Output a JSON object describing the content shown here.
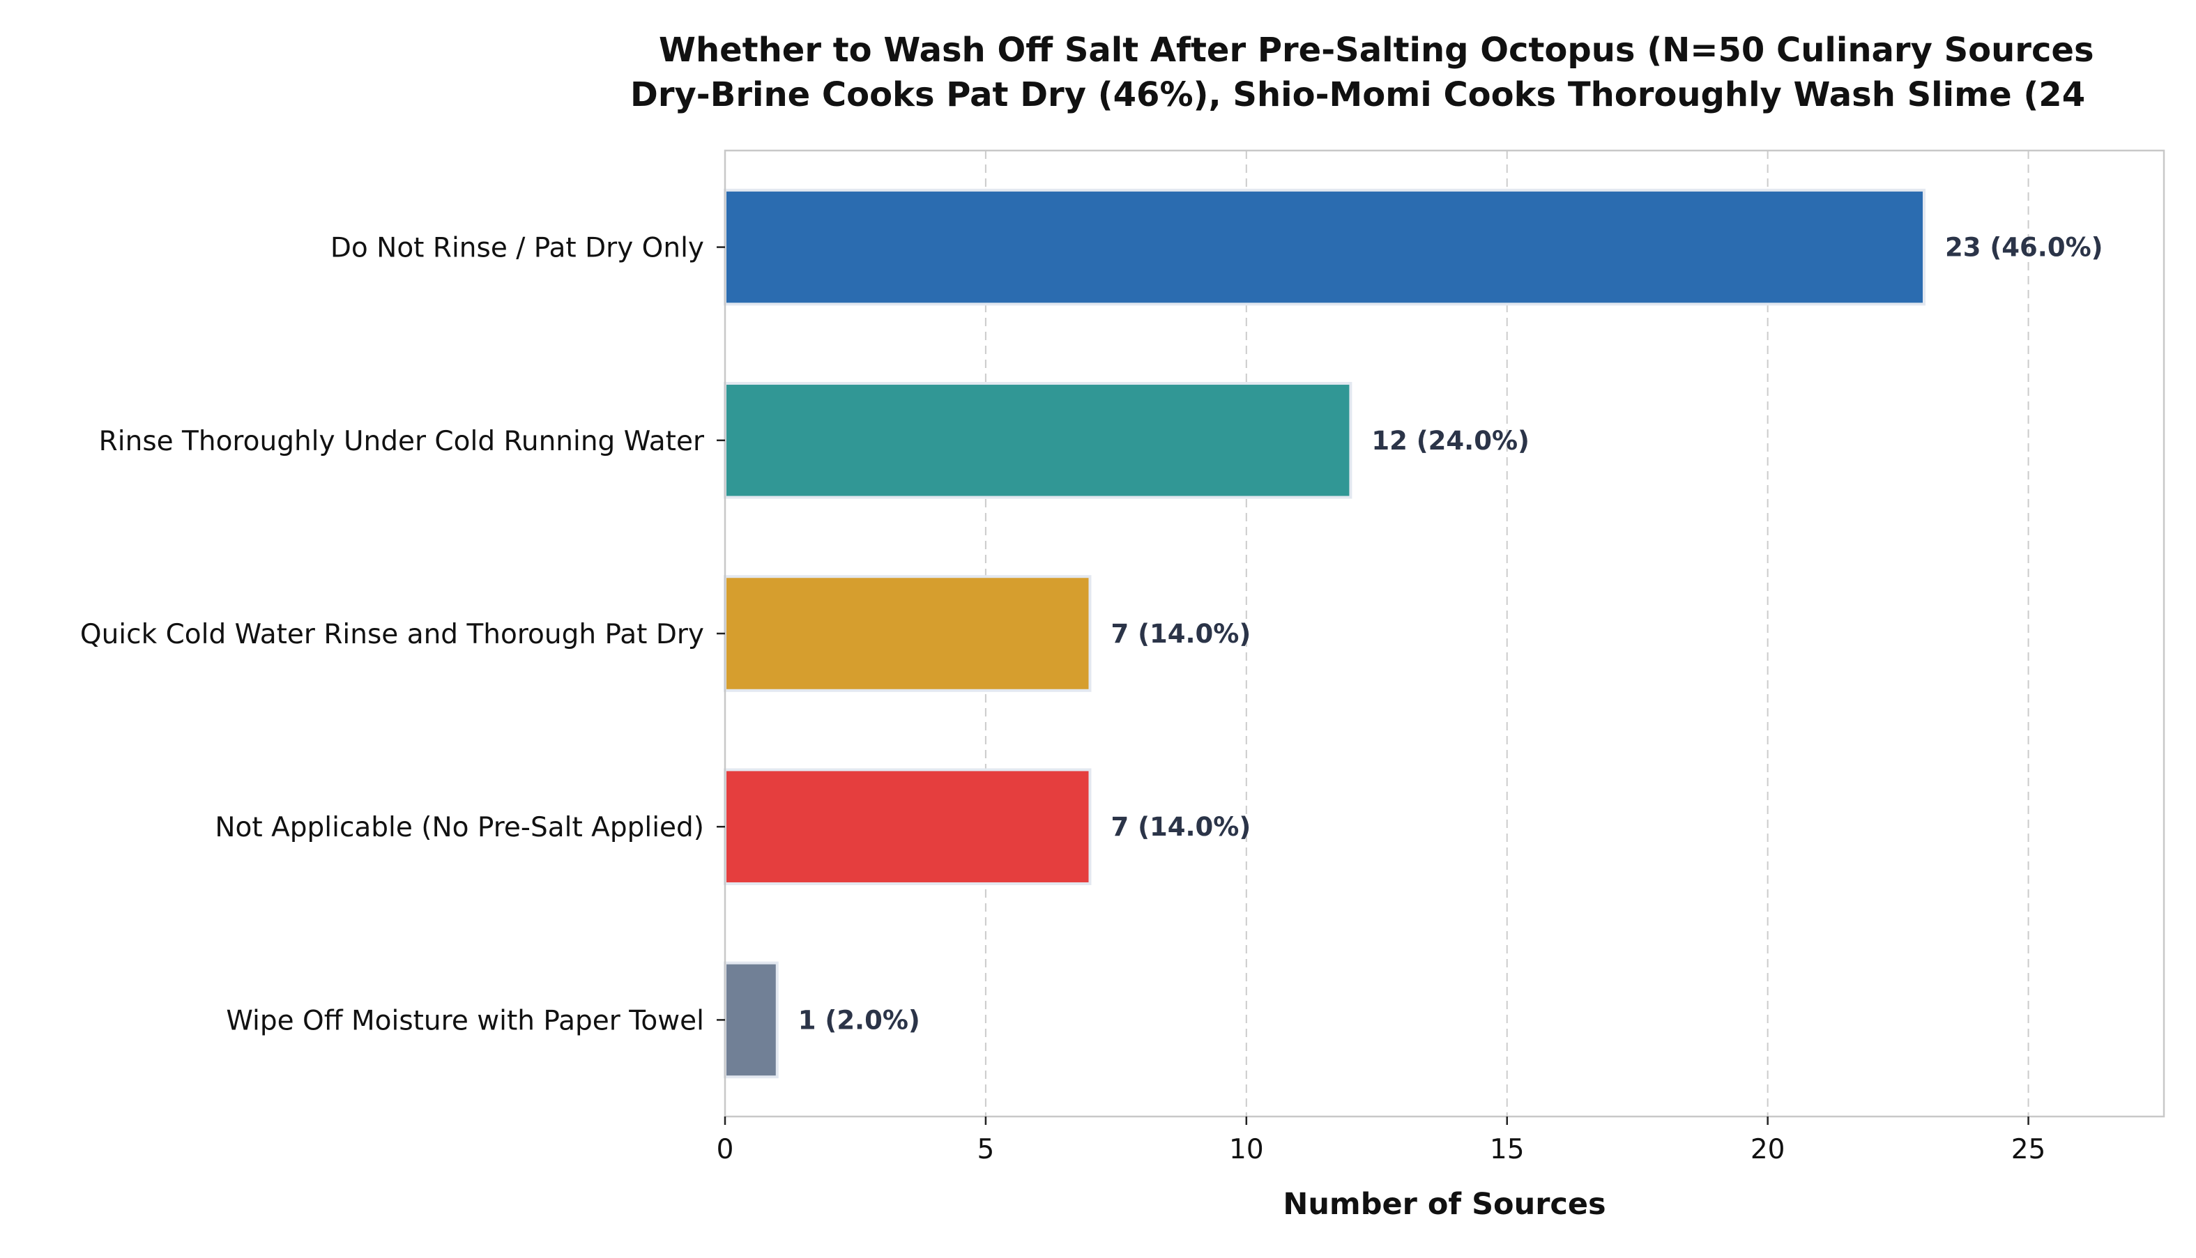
{
  "chart_data": {
    "type": "bar",
    "orientation": "horizontal",
    "title": "Whether to Wash Off Salt After Pre-Salting Octopus (N=50 Culinary Sources",
    "subtitle": "Dry-Brine Cooks Pat Dry (46%), Shio-Momi Cooks Thoroughly Wash Slime (24",
    "xlabel": "Number of Sources",
    "ylabel": "",
    "xlim": [
      0,
      27.6
    ],
    "xticks": [
      0,
      5,
      10,
      15,
      20,
      25
    ],
    "grid": "vertical-dashed",
    "categories": [
      "Do Not Rinse / Pat Dry Only",
      "Rinse Thoroughly Under Cold Running Water",
      "Quick Cold Water Rinse and Thorough Pat Dry",
      "Not Applicable (No Pre-Salt Applied)",
      "Wipe Off Moisture with Paper Towel"
    ],
    "values": [
      23,
      12,
      7,
      7,
      1
    ],
    "value_labels": [
      "23 (46.0%)",
      "12 (24.0%)",
      "7 (14.0%)",
      "7 (14.0%)",
      "1 (2.0%)"
    ],
    "colors": [
      "#2b6cb0",
      "#319795",
      "#d69e2e",
      "#e53e3e",
      "#718096"
    ]
  }
}
